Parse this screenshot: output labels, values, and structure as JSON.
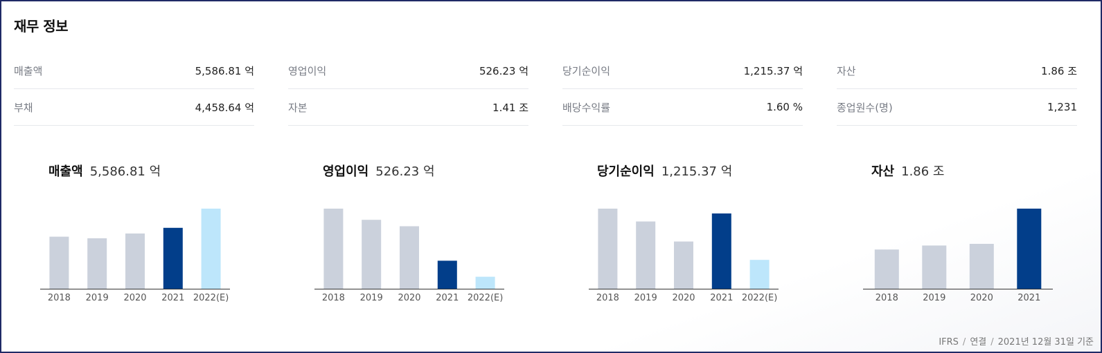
{
  "section": {
    "title": "재무 정보"
  },
  "metrics": [
    {
      "label": "매출액",
      "value": "5,586.81 억"
    },
    {
      "label": "영업이익",
      "value": "526.23 억"
    },
    {
      "label": "당기순이익",
      "value": "1,215.37 억"
    },
    {
      "label": "자산",
      "value": "1.86 조"
    },
    {
      "label": "부채",
      "value": "4,458.64 억"
    },
    {
      "label": "자본",
      "value": "1.41 조"
    },
    {
      "label": "배당수익률",
      "value": "1.60 %"
    },
    {
      "label": "종업원수(명)",
      "value": "1,231"
    }
  ],
  "charts": [
    {
      "title": "매출액",
      "value": "5,586.81 억"
    },
    {
      "title": "영업이익",
      "value": "526.23 억"
    },
    {
      "title": "당기순이익",
      "value": "1,215.37 억"
    },
    {
      "title": "자산",
      "value": "1.86 조"
    }
  ],
  "colors": {
    "past": "#cbd1dc",
    "current": "#023e8a",
    "estimate": "#bde6fb",
    "axis": "#333333"
  },
  "chart_data": [
    {
      "type": "bar",
      "title": "매출액",
      "categories": [
        "2018",
        "2019",
        "2020",
        "2021",
        "2022(E)"
      ],
      "values": [
        0.65,
        0.63,
        0.69,
        0.76,
        1.0
      ],
      "kinds": [
        "past",
        "past",
        "past",
        "current",
        "estimate"
      ]
    },
    {
      "type": "bar",
      "title": "영업이익",
      "categories": [
        "2018",
        "2019",
        "2020",
        "2021",
        "2022(E)"
      ],
      "values": [
        1.0,
        0.86,
        0.78,
        0.35,
        0.15
      ],
      "kinds": [
        "past",
        "past",
        "past",
        "current",
        "estimate"
      ]
    },
    {
      "type": "bar",
      "title": "당기순이익",
      "categories": [
        "2018",
        "2019",
        "2020",
        "2021",
        "2022(E)"
      ],
      "values": [
        1.0,
        0.84,
        0.59,
        0.94,
        0.36
      ],
      "kinds": [
        "past",
        "past",
        "past",
        "current",
        "estimate"
      ]
    },
    {
      "type": "bar",
      "title": "자산",
      "categories": [
        "2018",
        "2019",
        "2020",
        "2021"
      ],
      "values": [
        0.49,
        0.54,
        0.56,
        1.0
      ],
      "kinds": [
        "past",
        "past",
        "past",
        "current"
      ]
    }
  ],
  "footnote": {
    "standard": "IFRS",
    "basis": "연결",
    "date": "2021년 12월 31일 기준"
  }
}
